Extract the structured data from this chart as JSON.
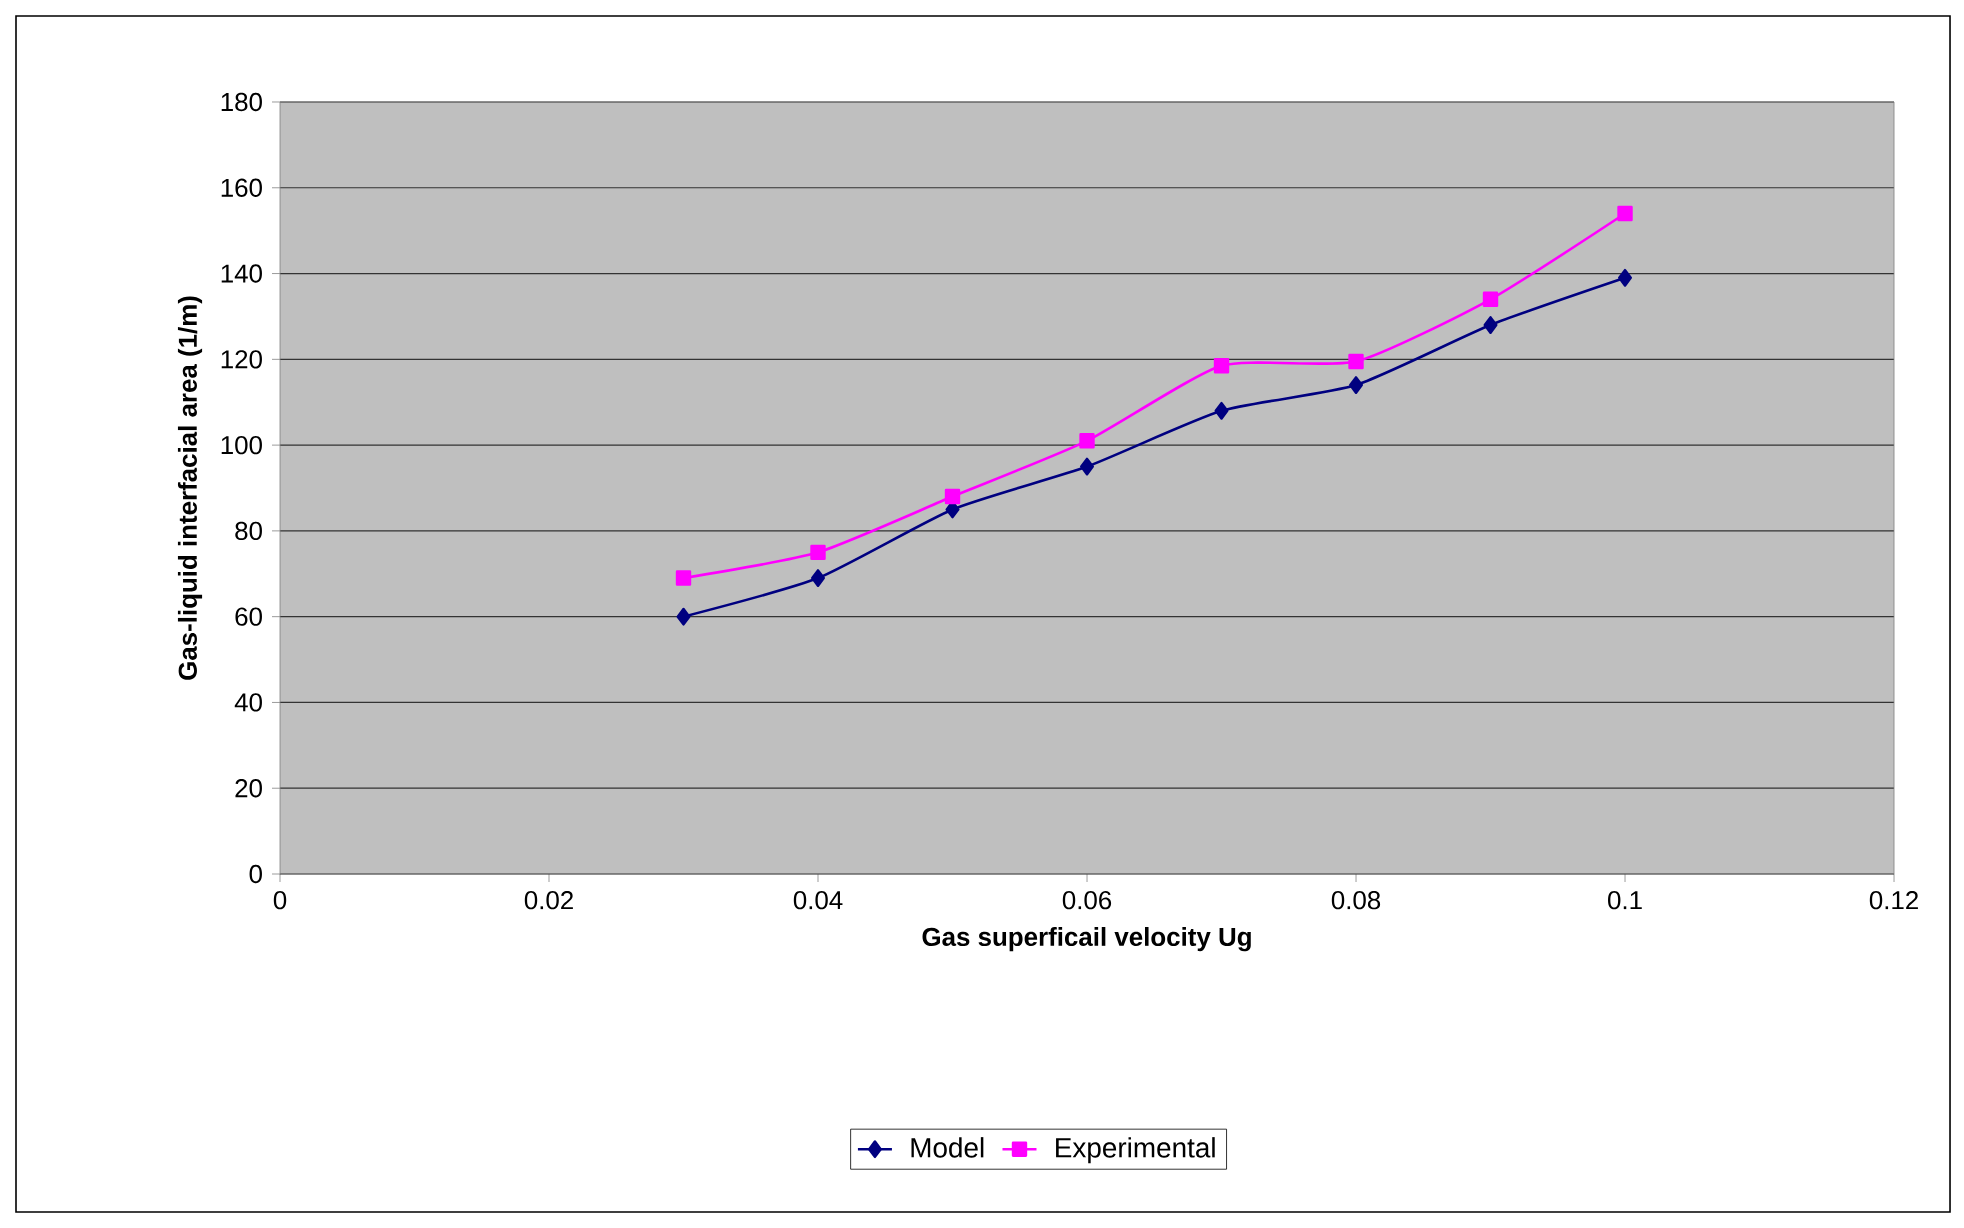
{
  "chart_data": {
    "type": "line",
    "xlabel": "Gas superficail velocity Ug",
    "ylabel": "Gas-liquid interfacial area (1/m)",
    "x": [
      0.03,
      0.04,
      0.05,
      0.06,
      0.07,
      0.08,
      0.09,
      0.1
    ],
    "series": [
      {
        "name": "Model",
        "color": "#000080",
        "marker": "diamond",
        "values": [
          60,
          69,
          85,
          95,
          108,
          114,
          128,
          139
        ]
      },
      {
        "name": "Experimental",
        "color": "#ff00ff",
        "marker": "square",
        "values": [
          69,
          75,
          88,
          101,
          118.5,
          119.5,
          134,
          154
        ]
      }
    ],
    "xlim": [
      0,
      0.12
    ],
    "xticks": [
      0,
      0.02,
      0.04,
      0.06,
      0.08,
      0.1,
      0.12
    ],
    "ylim": [
      0,
      180
    ],
    "yticks": [
      0,
      20,
      40,
      60,
      80,
      100,
      120,
      140,
      160,
      180
    ],
    "grid": "y",
    "legend": "bottom"
  }
}
